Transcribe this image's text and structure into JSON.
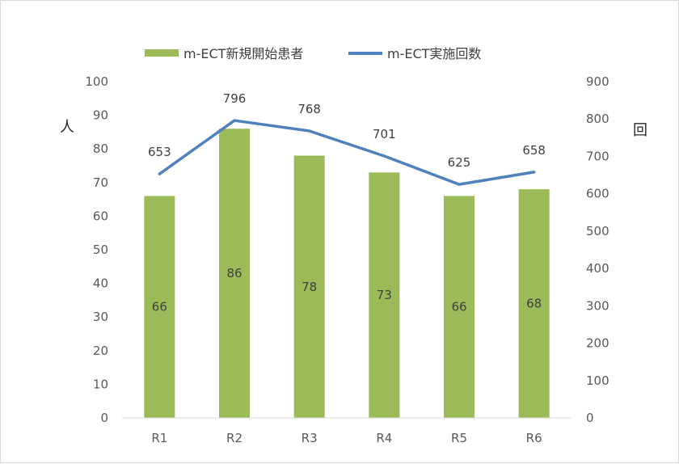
{
  "chart_data": {
    "type": "bar",
    "categories": [
      "R1",
      "R2",
      "R3",
      "R4",
      "R5",
      "R6"
    ],
    "series": [
      {
        "name": "m-ECT新規開始患者",
        "type": "bar",
        "axis": "left",
        "color": "#9bbb59",
        "values": [
          66,
          86,
          78,
          73,
          66,
          68
        ]
      },
      {
        "name": "m-ECT実施回数",
        "type": "line",
        "axis": "right",
        "color": "#4f81bd",
        "values": [
          653,
          796,
          768,
          701,
          625,
          658
        ]
      }
    ],
    "ylabel": "人",
    "y2label": "回",
    "ylim": [
      0,
      100
    ],
    "y2lim": [
      0,
      900
    ],
    "yticks": [
      "0",
      "10",
      "20",
      "30",
      "40",
      "50",
      "60",
      "70",
      "80",
      "90",
      "100"
    ],
    "y2ticks": [
      "0",
      "100",
      "200",
      "300",
      "400",
      "500",
      "600",
      "700",
      "800",
      "900"
    ],
    "legend": "top",
    "grid": false
  }
}
